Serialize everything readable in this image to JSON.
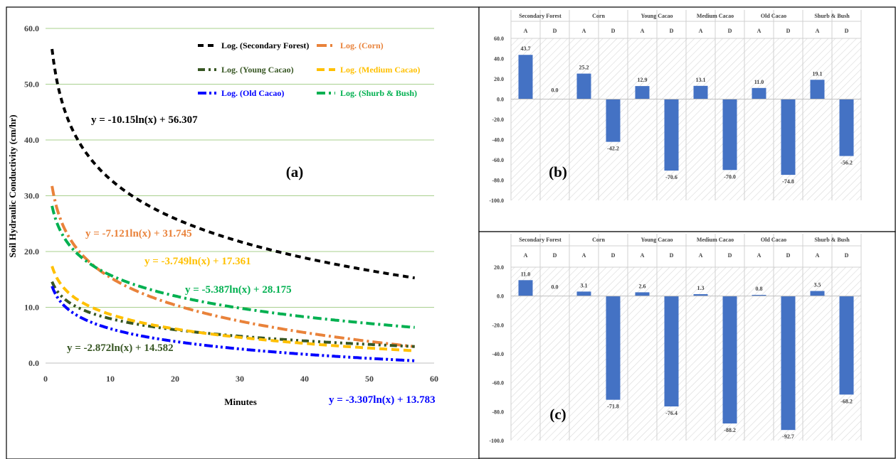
{
  "panels": {
    "a": {
      "tag": "(a)"
    },
    "b": {
      "tag": "(b)"
    },
    "c": {
      "tag": "(c)"
    }
  },
  "colors": {
    "secondary_forest": "#000000",
    "corn": "#e9823a",
    "young_cacao": "#375623",
    "medium_cacao": "#ffc000",
    "old_cacao": "#0000ff",
    "shurb_bush": "#00b050",
    "bar": "#4472c4",
    "grid_a": "#a9d08e"
  },
  "chart_data": [
    {
      "id": "a",
      "type": "line",
      "xlabel": "Minutes",
      "ylabel": "Soil Hydraulic Conductivity (cm/hr)",
      "xlim": [
        0,
        60
      ],
      "ylim": [
        0,
        60
      ],
      "xticks": [
        "0",
        "10",
        "20",
        "30",
        "40",
        "50",
        "60"
      ],
      "yticks": [
        "0.0",
        "10.0",
        "20.0",
        "30.0",
        "40.0",
        "50.0",
        "60.0"
      ],
      "grid": "horizontal",
      "legend_position": "top-right",
      "x_range": [
        1,
        57
      ],
      "series": [
        {
          "name": "Log. (Secondary Forest)",
          "legend": "Log. (Secondary Forest)",
          "a": -10.15,
          "b": 56.307,
          "color": "#000000",
          "dash": "8,6",
          "equation": "y = -10.15ln(x) + 56.307"
        },
        {
          "name": "Log. (Corn)",
          "legend": "Log. (Corn)",
          "a": -7.121,
          "b": 31.745,
          "color": "#e9823a",
          "dash": "14,5,3,5",
          "equation": "y = -7.121ln(x) + 31.745"
        },
        {
          "name": "Log. (Young Cacao)",
          "legend": "Log. (Young Cacao)",
          "a": -2.872,
          "b": 14.582,
          "color": "#375623",
          "dash": "10,5,3,5,3,5",
          "equation": "y = -2.872ln(x) + 14.582"
        },
        {
          "name": "Log. (Medium Cacao)",
          "legend": "Log. (Medium Cacao)",
          "a": -3.749,
          "b": 17.361,
          "color": "#ffc000",
          "dash": "11,6",
          "equation": "y = -3.749ln(x) + 17.361"
        },
        {
          "name": "Log. (Old Cacao)",
          "legend": "Log. (Old Cacao)",
          "a": -3.307,
          "b": 13.783,
          "color": "#0000ff",
          "dash": "12,4,3,4,3,4",
          "equation": "y = -3.307ln(x) + 13.783"
        },
        {
          "name": "Log. (Shurb & Bush)",
          "legend": "Log. (Shurb & Bush)",
          "a": -5.387,
          "b": 28.175,
          "color": "#00b050",
          "dash": "12,5,3,5",
          "equation": "y = -5.387ln(x) + 28.175"
        }
      ]
    },
    {
      "id": "b",
      "type": "bar",
      "groups": [
        "Secondary Forest",
        "Corn",
        "Young Cacao",
        "Medium Cacao",
        "Old Cacao",
        "Shurb & Bush"
      ],
      "categories": [
        "A",
        "D",
        "A",
        "D",
        "A",
        "D",
        "A",
        "D",
        "A",
        "D",
        "A",
        "D"
      ],
      "values": [
        43.7,
        0.0,
        25.2,
        -42.2,
        12.9,
        -70.6,
        13.1,
        -70.0,
        11.0,
        -74.8,
        19.1,
        -56.2
      ],
      "value_labels": [
        "43.7",
        "0.0",
        "25.2",
        "-42.2",
        "12.9",
        "-70.6",
        "13.1",
        "-70.0",
        "11.0",
        "-74.8",
        "19.1",
        "-56.2"
      ],
      "ylim": [
        -100,
        60
      ],
      "yticks": [
        60,
        40,
        20,
        0,
        -20,
        -40,
        -60,
        -80,
        -100
      ],
      "ytick_labels": [
        "60.0",
        "40.0",
        "20.0",
        "0.0",
        "-20.0",
        "-40.0",
        "-60.0",
        "-80.0",
        "-100.0"
      ]
    },
    {
      "id": "c",
      "type": "bar",
      "groups": [
        "Secondary Forest",
        "Corn",
        "Young Cacao",
        "Medium Cacao",
        "Old Cacao",
        "Shurb & Bush"
      ],
      "categories": [
        "A",
        "D",
        "A",
        "D",
        "A",
        "D",
        "A",
        "D",
        "A",
        "D",
        "A",
        "D"
      ],
      "values": [
        11.0,
        0.0,
        3.1,
        -71.8,
        2.6,
        -76.4,
        1.3,
        -88.2,
        0.8,
        -92.7,
        3.5,
        -68.2
      ],
      "value_labels": [
        "11.0",
        "0.0",
        "3.1",
        "-71.8",
        "2.6",
        "-76.4",
        "1.3",
        "-88.2",
        "0.8",
        "-92.7",
        "3.5",
        "-68.2"
      ],
      "ylim": [
        -100,
        20
      ],
      "yticks": [
        20,
        0,
        -20,
        -40,
        -60,
        -80,
        -100
      ],
      "ytick_labels": [
        "20.0",
        "0.0",
        "-20.0",
        "-40.0",
        "-60.0",
        "-80.0",
        "-100.0"
      ]
    }
  ]
}
